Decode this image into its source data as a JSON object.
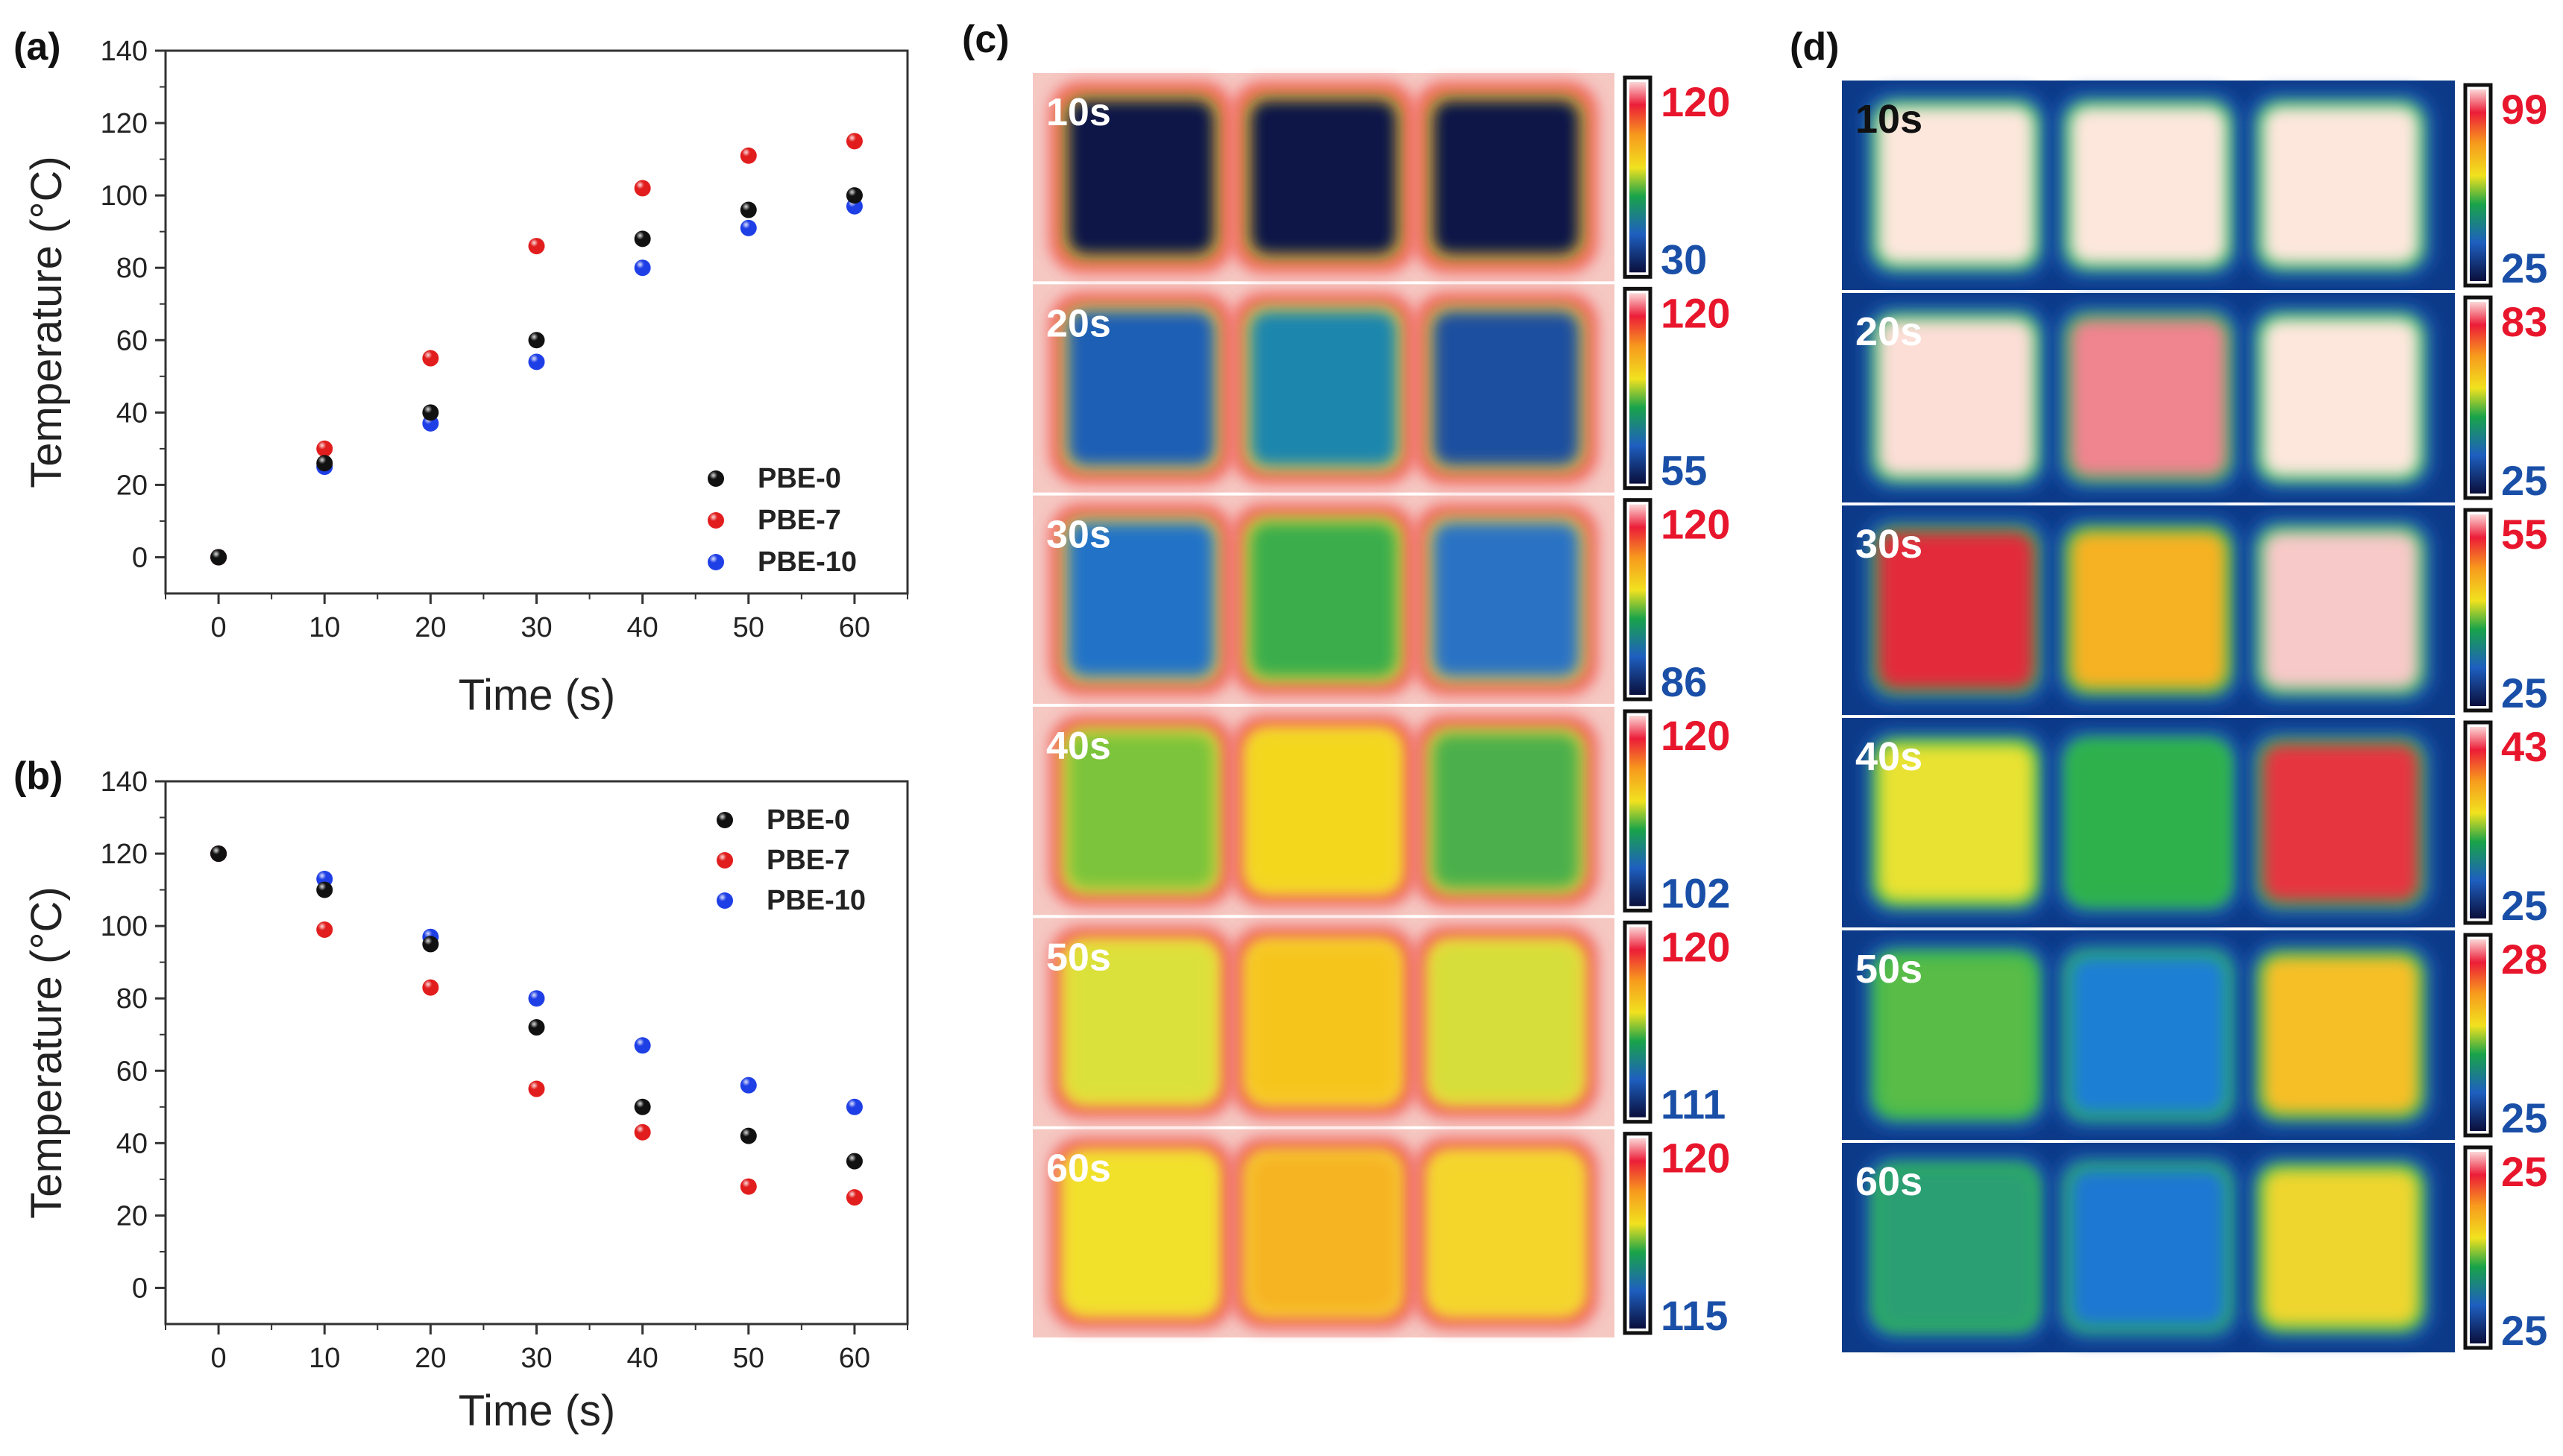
{
  "panels": {
    "a": "(a)",
    "b": "(b)",
    "c": "(c)",
    "d": "(d)"
  },
  "colors": {
    "PBE-0": "#111111",
    "PBE-7": "#e11d1d",
    "PBE-10": "#1f3fe6"
  },
  "chart_data": [
    {
      "id": "a",
      "type": "scatter",
      "title": "",
      "xlabel": "Time (s)",
      "ylabel": "Temperature (°C)",
      "x": [
        0,
        10,
        20,
        30,
        40,
        50,
        60
      ],
      "xlim": [
        -5,
        65
      ],
      "ylim": [
        -10,
        140
      ],
      "yticks": [
        0,
        20,
        40,
        60,
        80,
        100,
        120,
        140
      ],
      "legend_position": "bottom-right",
      "series": [
        {
          "name": "PBE-0",
          "values": [
            0,
            26,
            40,
            60,
            88,
            96,
            100
          ]
        },
        {
          "name": "PBE-7",
          "values": [
            0,
            30,
            55,
            86,
            102,
            111,
            115
          ]
        },
        {
          "name": "PBE-10",
          "values": [
            0,
            25,
            37,
            54,
            80,
            91,
            97
          ]
        }
      ]
    },
    {
      "id": "b",
      "type": "scatter",
      "title": "",
      "xlabel": "Time (s)",
      "ylabel": "Temperature (°C)",
      "x": [
        0,
        10,
        20,
        30,
        40,
        50,
        60
      ],
      "xlim": [
        -5,
        65
      ],
      "ylim": [
        -10,
        140
      ],
      "yticks": [
        0,
        20,
        40,
        60,
        80,
        100,
        120,
        140
      ],
      "legend_position": "top-right",
      "series": [
        {
          "name": "PBE-0",
          "values": [
            120,
            110,
            95,
            72,
            50,
            42,
            35
          ]
        },
        {
          "name": "PBE-7",
          "values": [
            120,
            99,
            83,
            55,
            43,
            28,
            25
          ]
        },
        {
          "name": "PBE-10",
          "values": [
            120,
            113,
            97,
            80,
            67,
            56,
            50
          ]
        }
      ]
    },
    {
      "id": "c",
      "type": "heatmap",
      "rows": [
        {
          "time": "10s",
          "max": "120",
          "min": "30",
          "cells": [
            "#0b1446",
            "#0b1446",
            "#0b1446"
          ]
        },
        {
          "time": "20s",
          "max": "120",
          "min": "55",
          "cells": [
            "#1f5fb5",
            "#1f86ad",
            "#1c4f9f"
          ]
        },
        {
          "time": "30s",
          "max": "120",
          "min": "86",
          "cells": [
            "#2273c7",
            "#3aae4c",
            "#2b73c4"
          ]
        },
        {
          "time": "40s",
          "max": "120",
          "min": "102",
          "cells": [
            "#7cc43a",
            "#f3d71e",
            "#4cb04c"
          ]
        },
        {
          "time": "50s",
          "max": "120",
          "min": "111",
          "cells": [
            "#dbe13a",
            "#f6c51e",
            "#d6de3a"
          ]
        },
        {
          "time": "60s",
          "max": "120",
          "min": "115",
          "cells": [
            "#f1e12a",
            "#f6b323",
            "#f4d52a"
          ]
        }
      ]
    },
    {
      "id": "d",
      "type": "heatmap",
      "rows": [
        {
          "time": "10s",
          "max": "99",
          "min": "25",
          "cells": [
            "#fde7dc",
            "#fde7dc",
            "#fde7dc"
          ]
        },
        {
          "time": "20s",
          "max": "83",
          "min": "25",
          "cells": [
            "#fcded6",
            "#f0848f",
            "#fde7dc"
          ]
        },
        {
          "time": "30s",
          "max": "55",
          "min": "25",
          "cells": [
            "#e32a3a",
            "#f6b220",
            "#f7c9c8"
          ]
        },
        {
          "time": "40s",
          "max": "43",
          "min": "25",
          "cells": [
            "#e9e233",
            "#2db04c",
            "#e73541"
          ]
        },
        {
          "time": "50s",
          "max": "28",
          "min": "25",
          "cells": [
            "#59bc46",
            "#1f7fd4",
            "#f6bf25"
          ]
        },
        {
          "time": "60s",
          "max": "25",
          "min": "25",
          "cells": [
            "#2a9f73",
            "#1c78d2",
            "#eed62f"
          ]
        }
      ]
    }
  ]
}
